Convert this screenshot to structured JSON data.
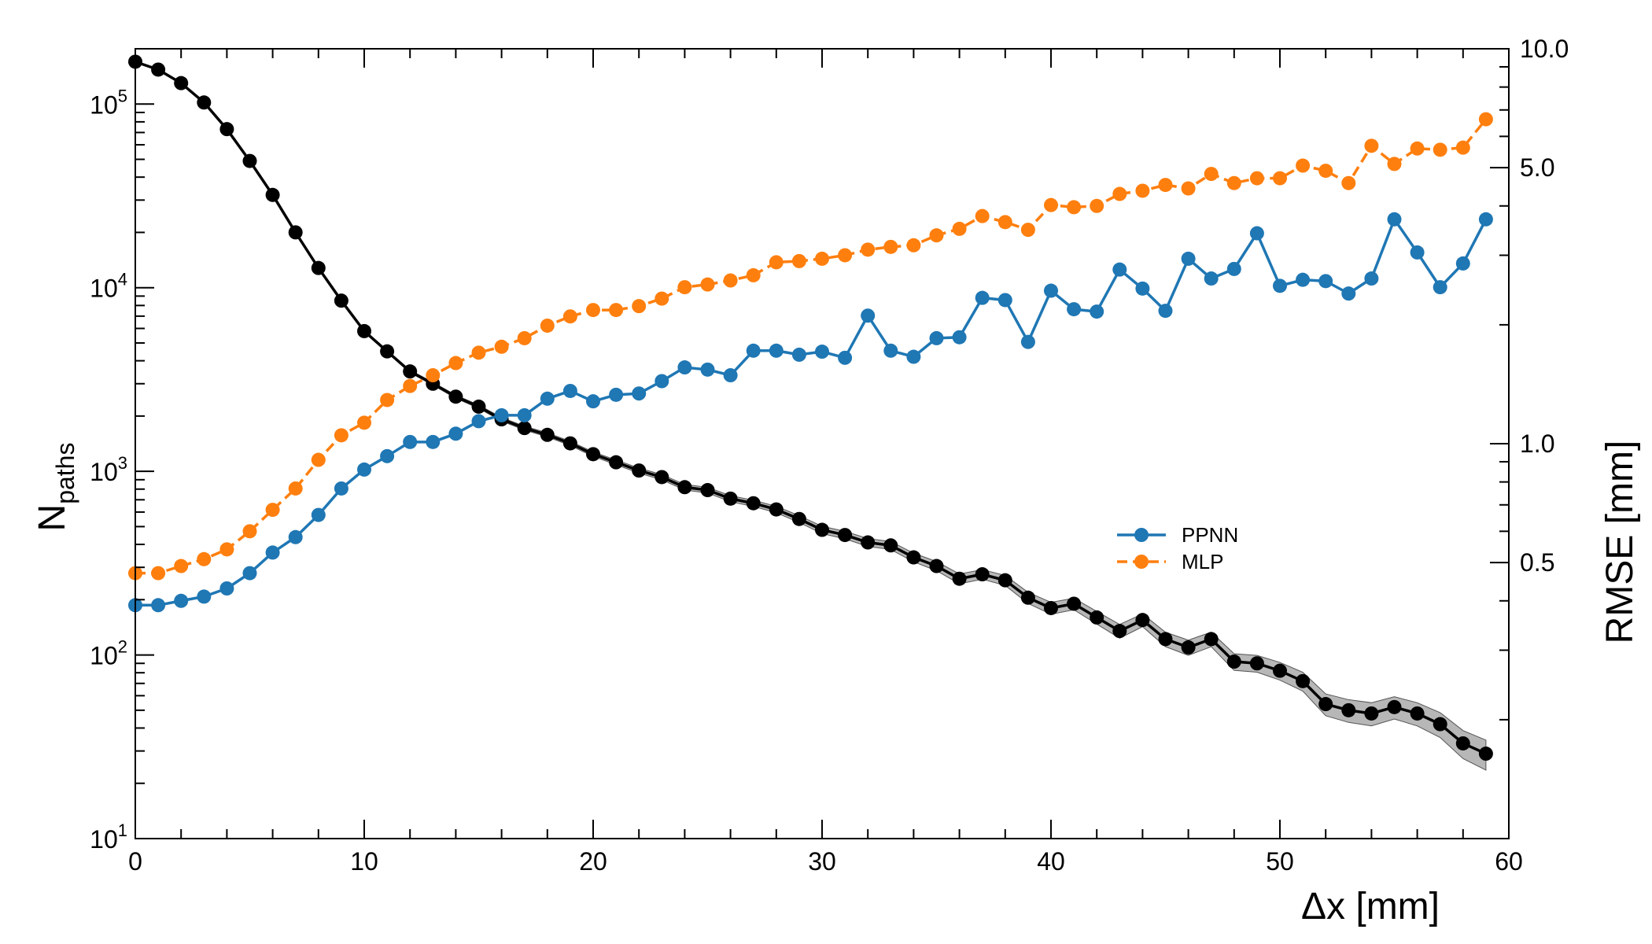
{
  "chart_data": {
    "type": "line",
    "title": "",
    "xlabel": "Δx [mm]",
    "ylabel_left": {
      "main": "N",
      "sub": "paths"
    },
    "ylabel_right": "RMSE [mm]",
    "xlim": [
      0,
      60
    ],
    "ylim_left": [
      10,
      200000
    ],
    "ylim_left_scale": "log",
    "ylim_right": [
      0.1,
      10
    ],
    "ylim_right_scale": "log",
    "grid": false,
    "x_ticks": [
      {
        "value": 0,
        "label": "0"
      },
      {
        "value": 10,
        "label": "10"
      },
      {
        "value": 20,
        "label": "20"
      },
      {
        "value": 30,
        "label": "30"
      },
      {
        "value": 40,
        "label": "40"
      },
      {
        "value": 50,
        "label": "50"
      },
      {
        "value": 60,
        "label": "60"
      }
    ],
    "y_left_ticks": [
      {
        "value": 10,
        "base": "10",
        "exp": "1"
      },
      {
        "value": 100,
        "base": "10",
        "exp": "2"
      },
      {
        "value": 1000,
        "base": "10",
        "exp": "3"
      },
      {
        "value": 10000,
        "base": "10",
        "exp": "4"
      },
      {
        "value": 100000,
        "base": "10",
        "exp": "5"
      }
    ],
    "y_right_ticks": [
      {
        "value": 0.5,
        "label": "0.5"
      },
      {
        "value": 1.0,
        "label": "1.0"
      },
      {
        "value": 5.0,
        "label": "5.0"
      },
      {
        "value": 10.0,
        "label": "10.0"
      }
    ],
    "legend": {
      "position": "center-right",
      "entries": [
        {
          "label": "PPNN",
          "series": "PPNN"
        },
        {
          "label": "MLP",
          "series": "MLP"
        }
      ]
    },
    "x": [
      0,
      1,
      2,
      3,
      4,
      5,
      6,
      7,
      8,
      9,
      10,
      11,
      12,
      13,
      14,
      15,
      16,
      17,
      18,
      19,
      20,
      21,
      22,
      23,
      24,
      25,
      26,
      27,
      28,
      29,
      30,
      31,
      32,
      33,
      34,
      35,
      36,
      37,
      38,
      39,
      40,
      41,
      42,
      43,
      44,
      45,
      46,
      47,
      48,
      49,
      50,
      51,
      52,
      53,
      54,
      55,
      56,
      57,
      58,
      59
    ],
    "series": [
      {
        "name": "N_paths",
        "axis": "left",
        "color": "#000000",
        "dash": "solid",
        "band_color": "#999999",
        "values": [
          170000,
          154000,
          130000,
          102000,
          73000,
          49000,
          32000,
          20000,
          12800,
          8500,
          5800,
          4500,
          3500,
          3000,
          2550,
          2250,
          1920,
          1720,
          1580,
          1420,
          1240,
          1120,
          1010,
          930,
          820,
          790,
          710,
          670,
          620,
          550,
          480,
          450,
          410,
          395,
          340,
          305,
          260,
          275,
          255,
          205,
          180,
          190,
          160,
          135,
          155,
          122,
          110,
          122,
          92,
          90,
          82,
          72,
          54,
          50,
          48,
          52,
          48,
          42,
          33,
          29
        ]
      },
      {
        "name": "PPNN",
        "axis": "right",
        "color": "#1f77b4",
        "dash": "solid",
        "values": [
          0.39,
          0.39,
          0.4,
          0.41,
          0.43,
          0.47,
          0.53,
          0.58,
          0.66,
          0.77,
          0.86,
          0.93,
          1.01,
          1.01,
          1.06,
          1.14,
          1.18,
          1.18,
          1.3,
          1.36,
          1.28,
          1.33,
          1.34,
          1.44,
          1.56,
          1.54,
          1.49,
          1.72,
          1.72,
          1.68,
          1.71,
          1.65,
          2.11,
          1.72,
          1.66,
          1.85,
          1.86,
          2.34,
          2.31,
          1.81,
          2.44,
          2.19,
          2.16,
          2.76,
          2.47,
          2.17,
          2.94,
          2.62,
          2.77,
          3.41,
          2.51,
          2.6,
          2.58,
          2.4,
          2.62,
          3.7,
          3.05,
          2.49,
          2.86,
          3.7
        ]
      },
      {
        "name": "MLP",
        "axis": "right",
        "color": "#ff7f0e",
        "dash": "dashed",
        "values": [
          0.47,
          0.47,
          0.49,
          0.51,
          0.54,
          0.6,
          0.68,
          0.77,
          0.91,
          1.05,
          1.13,
          1.29,
          1.4,
          1.49,
          1.6,
          1.7,
          1.76,
          1.85,
          1.99,
          2.1,
          2.18,
          2.18,
          2.23,
          2.33,
          2.49,
          2.53,
          2.59,
          2.67,
          2.88,
          2.9,
          2.94,
          3.0,
          3.1,
          3.15,
          3.18,
          3.37,
          3.5,
          3.77,
          3.64,
          3.48,
          4.02,
          3.97,
          4.0,
          4.29,
          4.37,
          4.52,
          4.43,
          4.82,
          4.57,
          4.7,
          4.7,
          5.06,
          4.91,
          4.57,
          5.68,
          5.11,
          5.59,
          5.55,
          5.62,
          6.63
        ]
      }
    ]
  }
}
